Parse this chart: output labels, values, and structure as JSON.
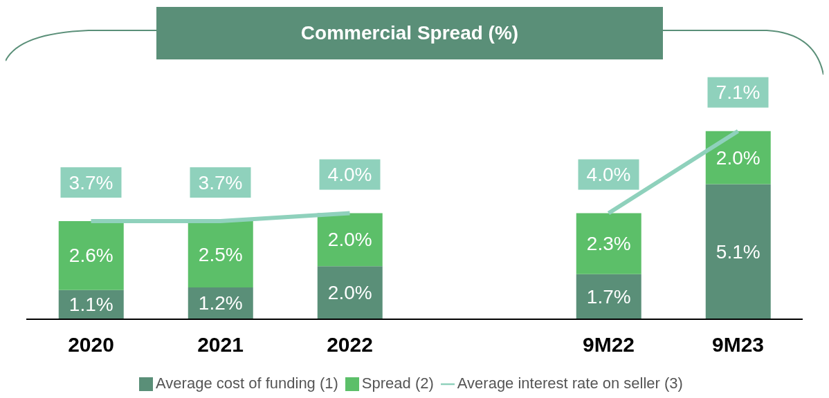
{
  "chart_data": {
    "type": "bar",
    "title": "Commercial Spread (%)",
    "stacked": true,
    "legend": "bottom",
    "categories": [
      "2020",
      "2021",
      "2022",
      null,
      "9M22",
      "9M23"
    ],
    "series": [
      {
        "name": "Average cost of funding (1)",
        "color": "#5a8f78",
        "values": [
          1.1,
          1.2,
          2.0,
          null,
          1.7,
          5.1
        ],
        "value_labels": [
          "1.1%",
          "1.2%",
          "2.0%",
          null,
          "1.7%",
          "5.1%"
        ]
      },
      {
        "name": "Spread (2)",
        "color": "#5cbf69",
        "values": [
          2.6,
          2.5,
          2.0,
          null,
          2.3,
          2.0
        ],
        "value_labels": [
          "2.6%",
          "2.5%",
          "2.0%",
          null,
          "2.3%",
          "2.0%"
        ]
      },
      {
        "name": "Average interest rate on seller (3)",
        "type": "line",
        "color": "#8fd1bc",
        "values": [
          3.7,
          3.7,
          4.0,
          null,
          4.0,
          7.1
        ],
        "value_labels": [
          "3.7%",
          "3.7%",
          "4.0%",
          null,
          "4.0%",
          "7.1%"
        ]
      }
    ]
  }
}
